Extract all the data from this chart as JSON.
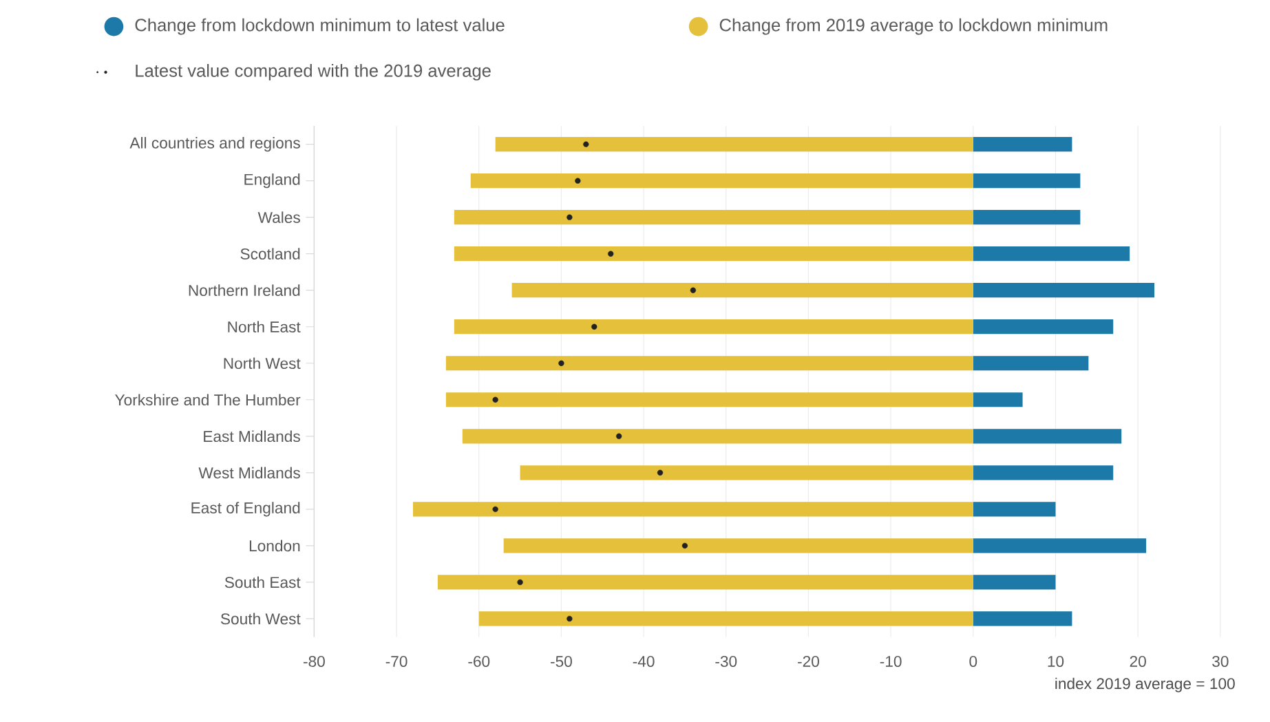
{
  "chart_data": {
    "type": "bar",
    "orientation": "horizontal",
    "xlabel": "index 2019 average = 100",
    "categories": [
      "All countries and regions",
      "England",
      "Wales",
      "Scotland",
      "Northern Ireland",
      "North East",
      "North West",
      "Yorkshire and The Humber",
      "East Midlands",
      "West Midlands",
      "East of England",
      "London",
      "South East",
      "South West"
    ],
    "series": [
      {
        "name": "Change from lockdown minimum to latest value",
        "color": "#1d7aa8",
        "values": [
          12,
          13,
          13,
          19,
          22,
          17,
          14,
          6,
          18,
          17,
          10,
          21,
          10,
          12
        ]
      },
      {
        "name": "Change from 2019 average to lockdown minimum",
        "color": "#e5c03b",
        "values": [
          -58,
          -61,
          -63,
          -63,
          -56,
          -63,
          -64,
          -64,
          -62,
          -55,
          -68,
          -57,
          -65,
          -60
        ]
      },
      {
        "name": "Latest value compared with the 2019 average",
        "type": "scatter",
        "color": "#222222",
        "marker": "circle",
        "values": [
          -47,
          -48,
          -49,
          -44,
          -34,
          -46,
          -50,
          -58,
          -43,
          -38,
          -58,
          -35,
          -55,
          -49
        ]
      }
    ],
    "xlim": [
      -80,
      30
    ],
    "xticks": [
      -80,
      -70,
      -60,
      -50,
      -40,
      -30,
      -20,
      -10,
      0,
      10,
      20,
      30
    ],
    "grid": "x",
    "legend": "top",
    "stacked": true
  }
}
